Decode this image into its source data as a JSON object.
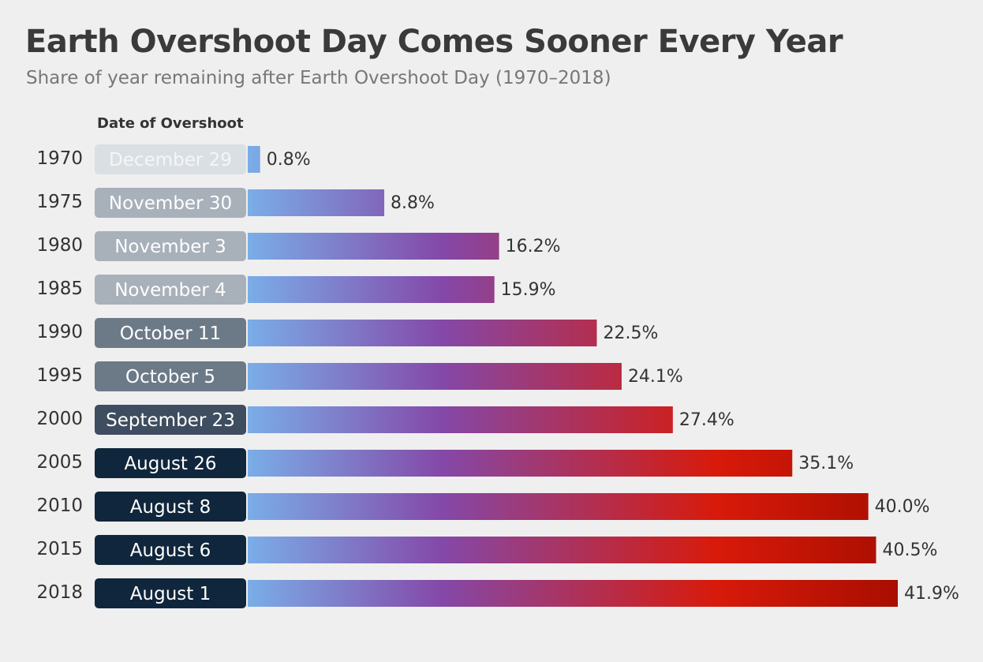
{
  "header": {
    "title": "Earth Overshoot Day Comes Sooner Every Year",
    "subtitle": "Share of year remaining after Earth Overshoot Day (1970–2018)",
    "column_label": "Date of Overshoot"
  },
  "colors": {
    "gradient_start": "#7aaee8",
    "gradient_mid": "#8448a8",
    "gradient_red": "#d81a0a",
    "gradient_end": "#a80e00",
    "pill_colors": [
      "#dadfe4",
      "#a8b0ba",
      "#a8b0ba",
      "#a8b0ba",
      "#6c7a88",
      "#6c7a88",
      "#3e4d5f",
      "#10263c",
      "#10263c",
      "#10263c",
      "#10263c"
    ],
    "pill_text_colors": [
      "#f4f6f8",
      "#ffffff",
      "#ffffff",
      "#ffffff",
      "#ffffff",
      "#ffffff",
      "#ffffff",
      "#ffffff",
      "#ffffff",
      "#ffffff",
      "#ffffff"
    ]
  },
  "chart_data": {
    "type": "bar",
    "orientation": "horizontal",
    "title": "Earth Overshoot Day Comes Sooner Every Year",
    "subtitle": "Share of year remaining after Earth Overshoot Day (1970–2018)",
    "xlabel": "",
    "ylabel": "",
    "categories": [
      "1970",
      "1975",
      "1980",
      "1985",
      "1990",
      "1995",
      "2000",
      "2005",
      "2010",
      "2015",
      "2018"
    ],
    "dates": [
      "December 29",
      "November 30",
      "November 3",
      "November 4",
      "October 11",
      "October 5",
      "September 23",
      "August 26",
      "August 8",
      "August 6",
      "August 1"
    ],
    "values": [
      0.8,
      8.8,
      16.2,
      15.9,
      22.5,
      24.1,
      27.4,
      35.1,
      40.0,
      40.5,
      41.9
    ],
    "value_labels": [
      "0.8%",
      "8.8%",
      "16.2%",
      "15.9%",
      "22.5%",
      "24.1%",
      "27.4%",
      "35.1%",
      "40.0%",
      "40.5%",
      "41.9%"
    ],
    "unit": "%",
    "grid": false,
    "legend": "none"
  }
}
